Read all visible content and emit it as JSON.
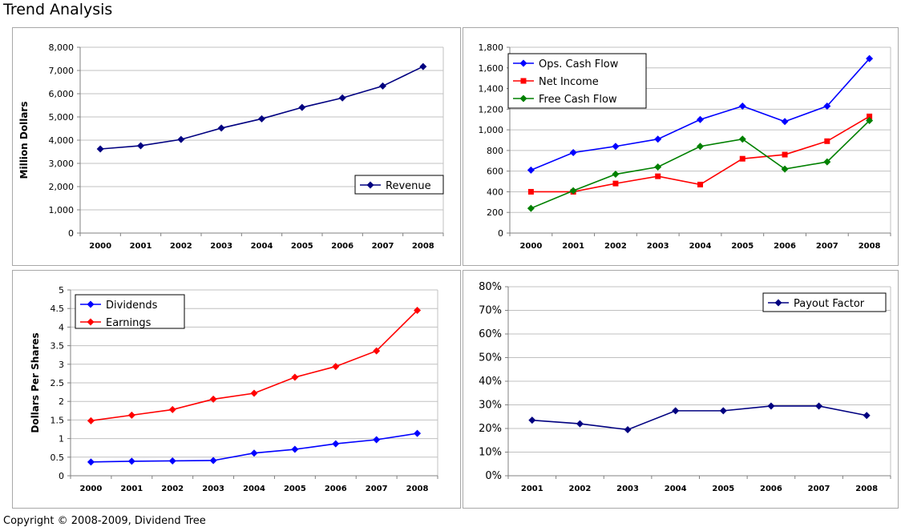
{
  "page": {
    "title": "Trend Analysis",
    "copyright": "Copyright © 2008-2009, Dividend Tree"
  },
  "chart_data": [
    {
      "id": "revenue",
      "type": "line",
      "title": "",
      "xlabel": "",
      "ylabel": "Million Dollars",
      "categories": [
        "2000",
        "2001",
        "2002",
        "2003",
        "2004",
        "2005",
        "2006",
        "2007",
        "2008"
      ],
      "ylim": [
        0,
        8000
      ],
      "yticks": [
        0,
        1000,
        2000,
        3000,
        4000,
        5000,
        6000,
        7000,
        8000
      ],
      "ytick_labels": [
        "0",
        "1,000",
        "2,000",
        "3,000",
        "4,000",
        "5,000",
        "6,000",
        "7,000",
        "8,000"
      ],
      "grid": true,
      "legend_position": "bottom-right",
      "series": [
        {
          "name": "Revenue",
          "color": "#000080",
          "marker": "diamond",
          "values": [
            3620,
            3760,
            4030,
            4520,
            4920,
            5410,
            5820,
            6330,
            7170
          ]
        }
      ]
    },
    {
      "id": "cashflow",
      "type": "line",
      "title": "",
      "xlabel": "",
      "ylabel": "",
      "categories": [
        "2000",
        "2001",
        "2002",
        "2003",
        "2004",
        "2005",
        "2006",
        "2007",
        "2008"
      ],
      "ylim": [
        0,
        1800
      ],
      "yticks": [
        0,
        200,
        400,
        600,
        800,
        1000,
        1200,
        1400,
        1600,
        1800
      ],
      "ytick_labels": [
        "0",
        "200",
        "400",
        "600",
        "800",
        "1,000",
        "1,200",
        "1,400",
        "1,600",
        "1,800"
      ],
      "grid": true,
      "legend_position": "top-left",
      "series": [
        {
          "name": "Ops. Cash Flow",
          "color": "#0000ff",
          "marker": "diamond",
          "values": [
            610,
            780,
            840,
            910,
            1100,
            1230,
            1080,
            1230,
            1690
          ]
        },
        {
          "name": "Net Income",
          "color": "#ff0000",
          "marker": "square",
          "values": [
            400,
            400,
            480,
            550,
            470,
            720,
            760,
            890,
            1130
          ]
        },
        {
          "name": "Free Cash Flow",
          "color": "#008000",
          "marker": "diamond",
          "values": [
            240,
            410,
            570,
            640,
            840,
            910,
            620,
            690,
            1090
          ]
        }
      ]
    },
    {
      "id": "pershare",
      "type": "line",
      "title": "",
      "xlabel": "",
      "ylabel": "Dollars Per Shares",
      "categories": [
        "2000",
        "2001",
        "2002",
        "2003",
        "2004",
        "2005",
        "2006",
        "2007",
        "2008"
      ],
      "ylim": [
        0,
        5
      ],
      "yticks": [
        0,
        0.5,
        1,
        1.5,
        2,
        2.5,
        3,
        3.5,
        4,
        4.5,
        5
      ],
      "ytick_labels": [
        "0",
        "0.5",
        "1",
        "1.5",
        "2",
        "2.5",
        "3",
        "3.5",
        "4",
        "4.5",
        "5"
      ],
      "grid": true,
      "legend_position": "top-left",
      "series": [
        {
          "name": "Dividends",
          "color": "#0000ff",
          "marker": "diamond",
          "values": [
            0.37,
            0.39,
            0.4,
            0.41,
            0.61,
            0.71,
            0.86,
            0.97,
            1.14
          ]
        },
        {
          "name": "Earnings",
          "color": "#ff0000",
          "marker": "diamond",
          "values": [
            1.48,
            1.63,
            1.78,
            2.06,
            2.22,
            2.65,
            2.94,
            3.36,
            4.45
          ]
        }
      ]
    },
    {
      "id": "payout",
      "type": "line",
      "title": "",
      "xlabel": "",
      "ylabel": "",
      "categories": [
        "2001",
        "2002",
        "2003",
        "2004",
        "2005",
        "2006",
        "2007",
        "2008"
      ],
      "ylim": [
        0,
        0.8
      ],
      "yticks": [
        0,
        0.1,
        0.2,
        0.3,
        0.4,
        0.5,
        0.6,
        0.7,
        0.8
      ],
      "ytick_labels": [
        "0%",
        "10%",
        "20%",
        "30%",
        "40%",
        "50%",
        "60%",
        "70%",
        "80%"
      ],
      "grid": true,
      "legend_position": "top-right",
      "series": [
        {
          "name": "Payout Factor",
          "color": "#000080",
          "marker": "diamond",
          "values": [
            0.235,
            0.22,
            0.195,
            0.275,
            0.275,
            0.295,
            0.295,
            0.255
          ]
        }
      ]
    }
  ]
}
